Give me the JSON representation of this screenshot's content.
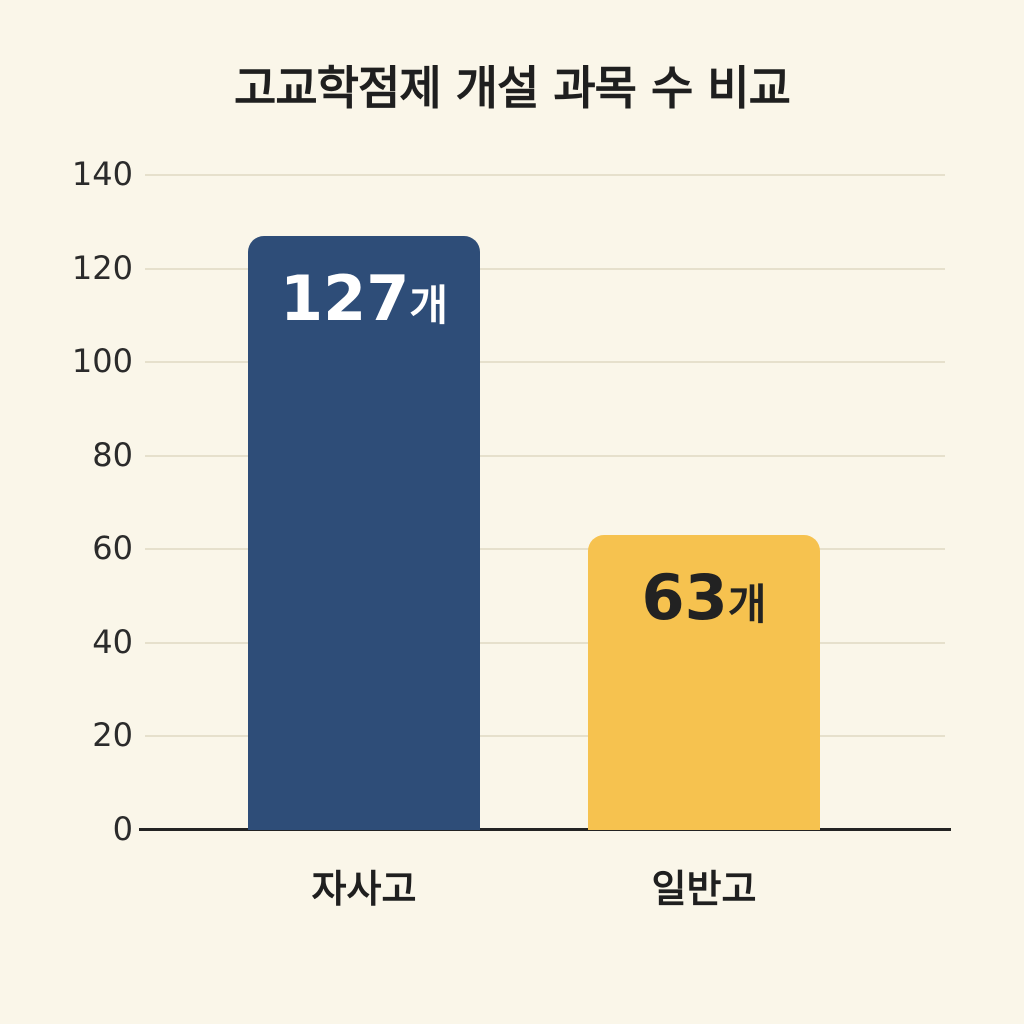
{
  "title": "고교학점제 개설 과목 수 비교",
  "colors": {
    "background": "#FAF6E9",
    "grid": "#E6E0CC",
    "axis": "#232323",
    "title_text": "#1F1F1F",
    "tick_text": "#2B2B2B",
    "category_text": "#1F1F1F",
    "series_colors": [
      "#2E4D78",
      "#F6C24F"
    ],
    "value_label_colors": [
      "#FFFFFF",
      "#222222"
    ]
  },
  "chart_data": {
    "type": "bar",
    "title": "고교학점제 개설 과목 수 비교",
    "categories": [
      "자사고",
      "일반고"
    ],
    "values": [
      127,
      63
    ],
    "value_labels": [
      "127개",
      "63개"
    ],
    "unit_suffix": "개",
    "xlabel": "",
    "ylabel": "",
    "yticks": [
      0,
      20,
      40,
      60,
      80,
      100,
      120,
      140
    ],
    "ylim": [
      0,
      140
    ],
    "grid": true,
    "legend": false
  }
}
